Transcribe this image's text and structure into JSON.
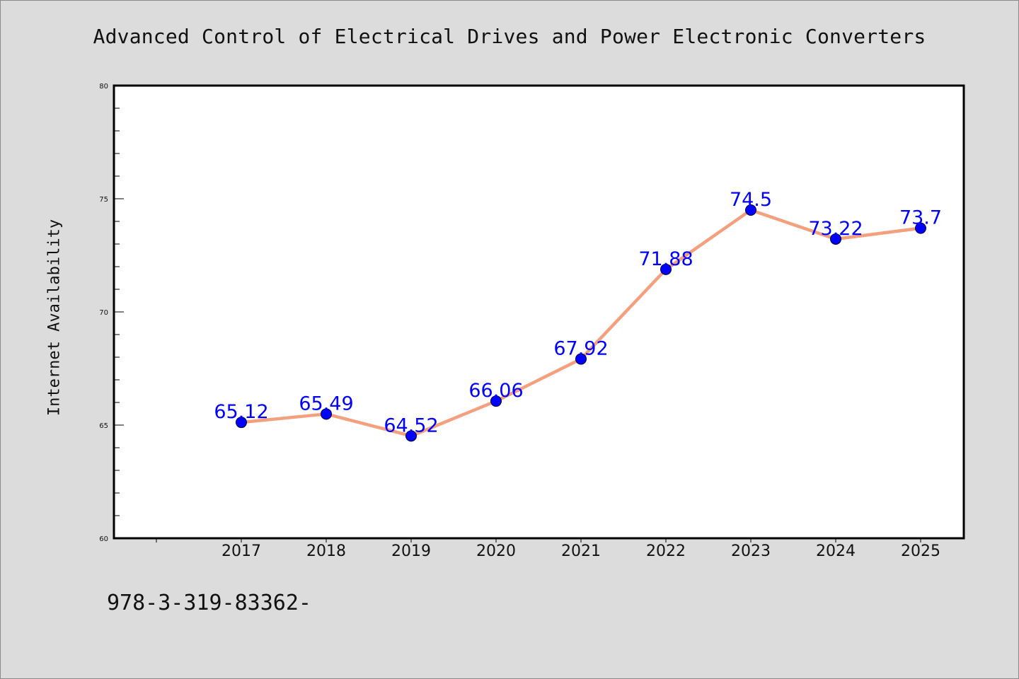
{
  "chart_data": {
    "type": "line",
    "title": "Advanced Control of Electrical Drives and Power Electronic Converters",
    "xlabel": "",
    "ylabel": "Internet Availability",
    "categories": [
      "2017",
      "2018",
      "2019",
      "2020",
      "2021",
      "2022",
      "2023",
      "2024",
      "2025"
    ],
    "series": [
      {
        "values": [
          65.12,
          65.49,
          64.52,
          66.06,
          67.92,
          71.88,
          74.5,
          73.22,
          73.7
        ],
        "labels": [
          "65.12",
          "65.49",
          "64.52",
          "66.06",
          "67.92",
          "71.88",
          "74.5",
          "73.22",
          "73.7"
        ]
      }
    ],
    "ylim": [
      60,
      80
    ],
    "yticks": [
      "60",
      "65",
      "70",
      "75",
      "80"
    ],
    "grid": false,
    "colors": {
      "line": "#f4a07e",
      "marker": "#0000ff",
      "label": "#0000ff",
      "plot_background": "#ffffff",
      "page_background": "#dcdcdc"
    }
  },
  "footer": {
    "text": "978-3-319-83362-"
  }
}
